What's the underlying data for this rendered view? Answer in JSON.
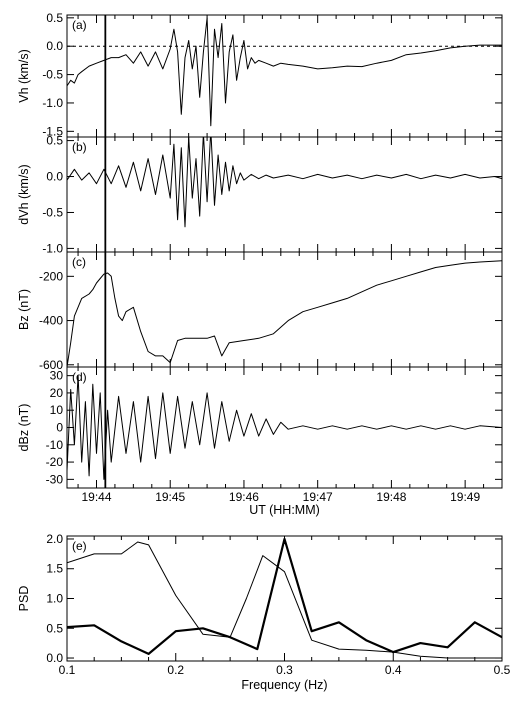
{
  "chart_data": [
    {
      "type": "line",
      "panel_label": "(a)",
      "ylabel": "Vh (km/s)",
      "xlim": [
        19.6,
        25.5
      ],
      "ylim": [
        -1.6,
        0.55
      ],
      "xticks": [
        20,
        21,
        22,
        23,
        24,
        25
      ],
      "yticks": [
        0.5,
        0.0,
        -0.5,
        -1.0,
        -1.5
      ],
      "ytick_labels": [
        "0.5",
        "0.0",
        "-0.5",
        "-1.0",
        "-1.5"
      ],
      "zero_reference_line": "dashed",
      "vertical_marker_x": 20.12,
      "series": [
        {
          "x": [
            19.6,
            19.65,
            19.7,
            19.75,
            19.8,
            19.9,
            20.0,
            20.1,
            20.2,
            20.3,
            20.4,
            20.5,
            20.6,
            20.7,
            20.8,
            20.9,
            21.0,
            21.05,
            21.1,
            21.15,
            21.2,
            21.25,
            21.3,
            21.35,
            21.4,
            21.45,
            21.5,
            21.55,
            21.6,
            21.65,
            21.7,
            21.75,
            21.8,
            21.85,
            21.9,
            21.95,
            22.0,
            22.05,
            22.1,
            22.15,
            22.2,
            22.3,
            22.4,
            22.5,
            22.6,
            22.8,
            23.0,
            23.2,
            23.4,
            23.6,
            23.8,
            24.0,
            24.2,
            24.4,
            24.6,
            24.8,
            25.0,
            25.2,
            25.5
          ],
          "y": [
            -0.7,
            -0.6,
            -0.65,
            -0.5,
            -0.45,
            -0.35,
            -0.3,
            -0.25,
            -0.2,
            -0.2,
            -0.15,
            -0.3,
            -0.1,
            -0.35,
            -0.1,
            -0.4,
            -0.05,
            0.3,
            -0.1,
            -1.2,
            -0.2,
            0.1,
            -0.4,
            0.0,
            -0.9,
            -0.1,
            0.5,
            -1.4,
            0.3,
            -0.2,
            0.4,
            -1.0,
            -0.1,
            0.2,
            -0.6,
            -0.2,
            0.1,
            -0.4,
            -0.2,
            -0.3,
            -0.25,
            -0.3,
            -0.35,
            -0.3,
            -0.32,
            -0.35,
            -0.4,
            -0.38,
            -0.35,
            -0.36,
            -0.3,
            -0.25,
            -0.15,
            -0.12,
            -0.08,
            -0.03,
            0.0,
            0.02,
            0.02
          ]
        }
      ]
    },
    {
      "type": "line",
      "panel_label": "(b)",
      "ylabel": "dVh (km/s)",
      "xlim": [
        19.6,
        25.5
      ],
      "ylim": [
        -1.05,
        0.55
      ],
      "xticks": [
        20,
        21,
        22,
        23,
        24,
        25
      ],
      "yticks": [
        0.5,
        0.0,
        -0.5,
        -1.0
      ],
      "ytick_labels": [
        "0.5",
        "0.0",
        "-0.5",
        "-1.0"
      ],
      "vertical_marker_x": 20.12,
      "series": [
        {
          "x": [
            19.6,
            19.7,
            19.8,
            19.9,
            20.0,
            20.1,
            20.2,
            20.3,
            20.4,
            20.5,
            20.6,
            20.7,
            20.8,
            20.9,
            21.0,
            21.05,
            21.1,
            21.15,
            21.2,
            21.25,
            21.3,
            21.35,
            21.4,
            21.45,
            21.5,
            21.55,
            21.6,
            21.65,
            21.7,
            21.75,
            21.8,
            21.85,
            21.9,
            21.95,
            22.0,
            22.1,
            22.2,
            22.3,
            22.4,
            22.6,
            22.8,
            23.0,
            23.2,
            23.4,
            23.6,
            23.8,
            24.0,
            24.2,
            24.4,
            24.6,
            24.8,
            25.0,
            25.2,
            25.4,
            25.5
          ],
          "y": [
            -0.05,
            0.1,
            -0.05,
            0.05,
            -0.1,
            0.1,
            -0.1,
            0.15,
            -0.15,
            0.2,
            -0.2,
            0.25,
            -0.25,
            0.3,
            -0.3,
            0.45,
            -0.6,
            0.4,
            -0.7,
            0.55,
            -0.3,
            0.25,
            -0.55,
            0.6,
            -0.35,
            0.65,
            -0.4,
            0.3,
            -0.25,
            0.2,
            -0.2,
            0.15,
            -0.1,
            0.05,
            -0.05,
            0.03,
            -0.03,
            0.02,
            -0.02,
            0.02,
            -0.03,
            0.03,
            -0.02,
            0.02,
            -0.03,
            0.02,
            -0.02,
            0.03,
            -0.03,
            0.02,
            -0.02,
            0.03,
            -0.02,
            0.0,
            -0.03
          ]
        }
      ]
    },
    {
      "type": "line",
      "panel_label": "(c)",
      "ylabel": "Bz (nT)",
      "xlim": [
        19.6,
        25.5
      ],
      "ylim": [
        -610,
        -90
      ],
      "xticks": [
        20,
        21,
        22,
        23,
        24,
        25
      ],
      "yticks": [
        -200,
        -400,
        -600
      ],
      "ytick_labels": [
        "-200",
        "-400",
        "-600"
      ],
      "vertical_marker_x": 20.12,
      "series": [
        {
          "x": [
            19.6,
            19.65,
            19.7,
            19.8,
            19.9,
            19.95,
            20.0,
            20.05,
            20.1,
            20.15,
            20.2,
            20.25,
            20.3,
            20.35,
            20.4,
            20.5,
            20.6,
            20.7,
            20.8,
            20.9,
            21.0,
            21.1,
            21.2,
            21.3,
            21.4,
            21.5,
            21.6,
            21.7,
            21.75,
            21.8,
            22.0,
            22.2,
            22.4,
            22.6,
            22.8,
            23.0,
            23.2,
            23.4,
            23.6,
            23.8,
            24.0,
            24.2,
            24.4,
            24.6,
            24.8,
            25.0,
            25.2,
            25.5
          ],
          "y": [
            -610,
            -500,
            -380,
            -300,
            -280,
            -260,
            -230,
            -210,
            -190,
            -185,
            -200,
            -300,
            -380,
            -400,
            -360,
            -340,
            -450,
            -540,
            -560,
            -560,
            -590,
            -490,
            -480,
            -480,
            -480,
            -480,
            -470,
            -560,
            -530,
            -500,
            -490,
            -480,
            -460,
            -400,
            -360,
            -340,
            -320,
            -300,
            -270,
            -240,
            -220,
            -200,
            -180,
            -160,
            -150,
            -140,
            -135,
            -130
          ]
        }
      ]
    },
    {
      "type": "line",
      "panel_label": "(d)",
      "ylabel": "dBz (nT)",
      "xlim": [
        19.6,
        25.5
      ],
      "ylim": [
        -35,
        35
      ],
      "xticks": [
        20,
        21,
        22,
        23,
        24,
        25
      ],
      "xtick_labels": [
        "19:44",
        "19:45",
        "19:46",
        "19:47",
        "19:48",
        "19:49"
      ],
      "xlabel": "UT (HH:MM)",
      "yticks": [
        30,
        20,
        10,
        0,
        -10,
        -20,
        -30
      ],
      "ytick_labels": [
        "30",
        "20",
        "10",
        "0",
        "-10",
        "-20",
        "-30"
      ],
      "vertical_marker_x": 20.12,
      "series": [
        {
          "x": [
            19.6,
            19.65,
            19.7,
            19.75,
            19.8,
            19.85,
            19.9,
            19.95,
            20.0,
            20.05,
            20.1,
            20.15,
            20.2,
            20.3,
            20.4,
            20.5,
            20.6,
            20.7,
            20.8,
            20.9,
            21.0,
            21.1,
            21.2,
            21.3,
            21.4,
            21.5,
            21.6,
            21.7,
            21.8,
            21.9,
            22.0,
            22.1,
            22.2,
            22.3,
            22.4,
            22.5,
            22.6,
            22.8,
            23.0,
            23.2,
            23.4,
            23.6,
            23.8,
            24.0,
            24.2,
            24.4,
            24.6,
            24.8,
            25.0,
            25.2,
            25.5
          ],
          "y": [
            -25,
            22,
            -10,
            30,
            -20,
            15,
            -28,
            25,
            -15,
            20,
            -30,
            10,
            -20,
            18,
            -15,
            15,
            -20,
            18,
            -18,
            20,
            -15,
            18,
            -12,
            15,
            -10,
            20,
            -12,
            15,
            -8,
            10,
            -5,
            8,
            -5,
            5,
            -4,
            3,
            -1,
            1,
            -1,
            1,
            -1,
            1,
            -1,
            1,
            -1,
            1,
            -1,
            1,
            -1,
            1,
            0
          ]
        }
      ]
    },
    {
      "type": "line",
      "panel_label": "(e)",
      "xlabel": "Frequency (Hz)",
      "ylabel": "PSD",
      "xlim": [
        0.1,
        0.5
      ],
      "ylim": [
        -0.05,
        2.05
      ],
      "xticks": [
        0.1,
        0.2,
        0.3,
        0.4,
        0.5
      ],
      "xtick_labels": [
        "0.1",
        "0.2",
        "0.3",
        "0.4",
        "0.5"
      ],
      "yticks": [
        2.0,
        1.5,
        1.0,
        0.5,
        0.0
      ],
      "ytick_labels": [
        "2.0",
        "1.5",
        "1.0",
        "0.5",
        "0.0"
      ],
      "series": [
        {
          "style": "thick",
          "x": [
            0.1,
            0.125,
            0.15,
            0.175,
            0.2,
            0.225,
            0.25,
            0.275,
            0.3,
            0.325,
            0.35,
            0.375,
            0.4,
            0.425,
            0.45,
            0.475,
            0.5
          ],
          "y": [
            0.52,
            0.55,
            0.28,
            0.07,
            0.45,
            0.5,
            0.35,
            0.15,
            2.0,
            0.45,
            0.6,
            0.3,
            0.1,
            0.25,
            0.18,
            0.6,
            0.35
          ]
        },
        {
          "style": "thin",
          "x": [
            0.1,
            0.125,
            0.15,
            0.165,
            0.175,
            0.2,
            0.225,
            0.25,
            0.265,
            0.28,
            0.3,
            0.325,
            0.35,
            0.375,
            0.4,
            0.425,
            0.45,
            0.475,
            0.5
          ],
          "y": [
            1.6,
            1.75,
            1.75,
            1.95,
            1.9,
            1.05,
            0.4,
            0.35,
            1.0,
            1.72,
            1.45,
            0.3,
            0.15,
            0.13,
            0.1,
            0.03,
            0.0,
            0.0,
            0.0
          ]
        }
      ]
    }
  ]
}
